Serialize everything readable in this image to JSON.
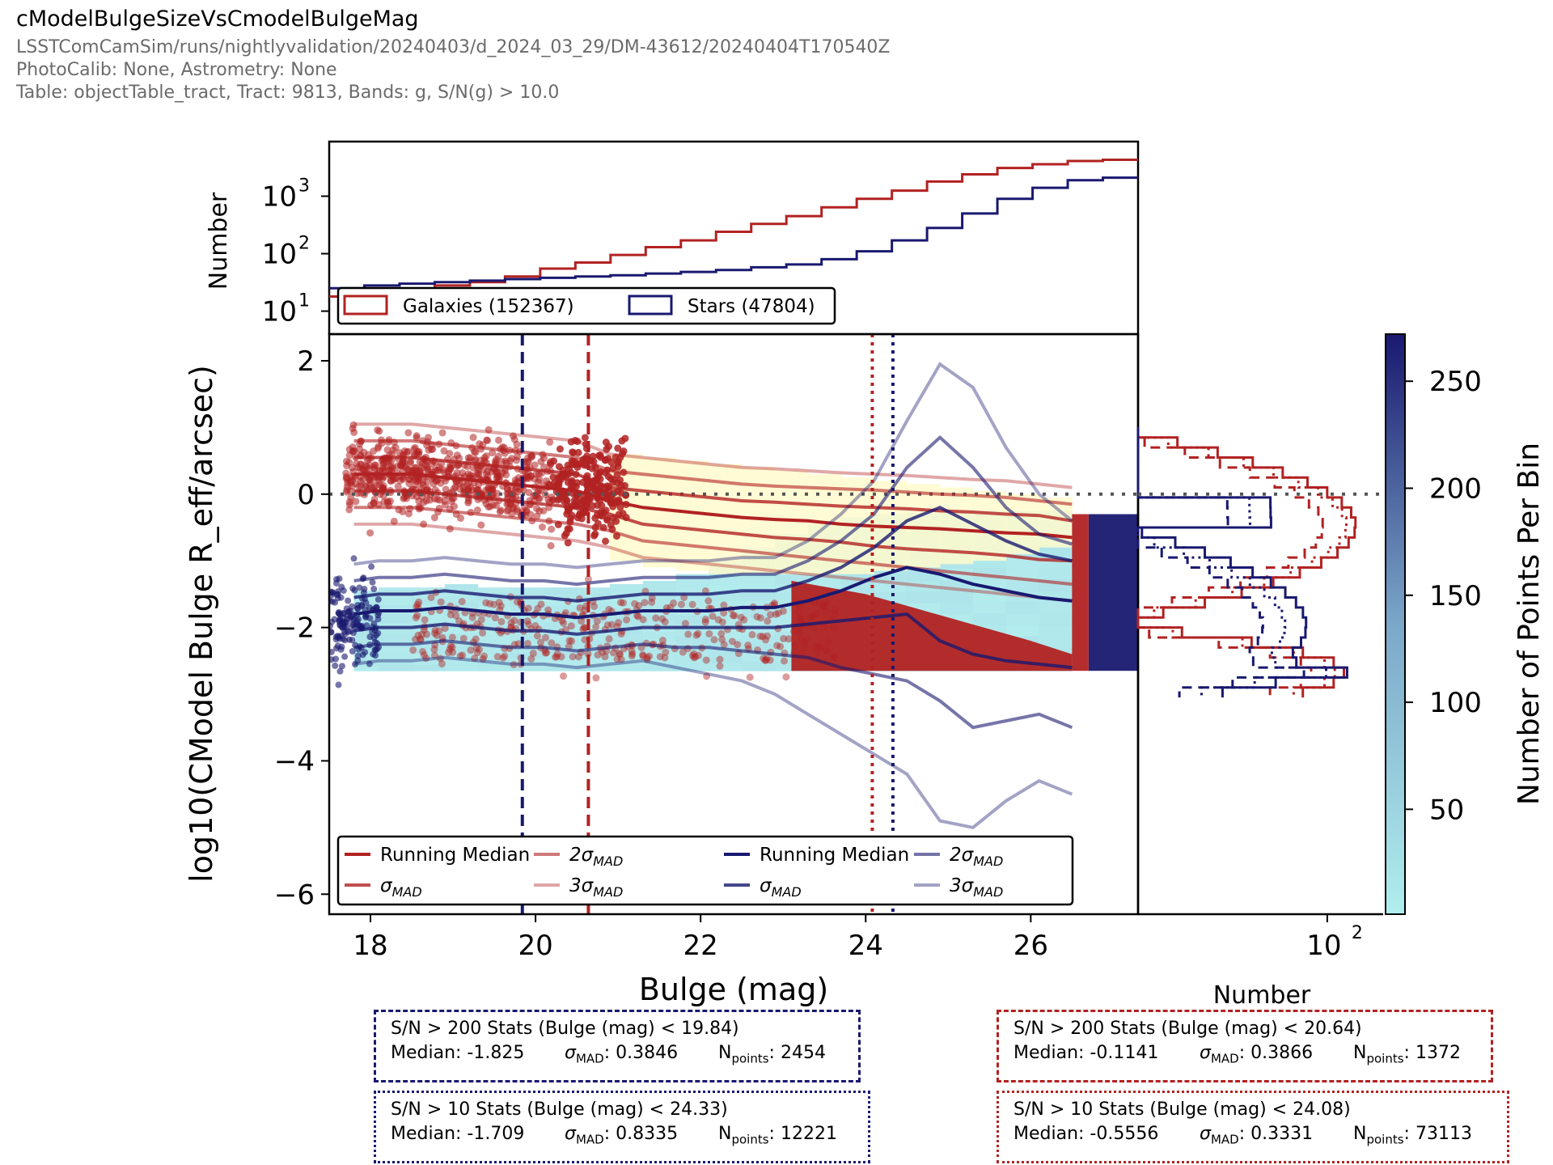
{
  "header": {
    "title": "cModelBulgeSizeVsCmodelBulgeMag",
    "lines": [
      "LSSTComCamSim/runs/nightlyvalidation/20240403/d_2024_03_29/DM-43612/20240404T170540Z",
      "PhotoCalib: None, Astrometry: None",
      "Table: objectTable_tract, Tract: 9813, Bands: g, S/N(g) > 10.0"
    ]
  },
  "colors": {
    "galaxy": "#b22222",
    "star": "#191970",
    "density_low": "#b0eeee",
    "density_mid": "#7ba7c9",
    "density_high": "#191970",
    "galaxy_density_low": "#fffacd"
  },
  "chart_data": {
    "type": "scatter",
    "xlabel": "Bulge (mag)",
    "ylabel": "log10(CModel Bulge R_eff/arcsec)",
    "xlim": [
      17.5,
      27.3
    ],
    "ylim": [
      -6.3,
      2.4
    ],
    "xticks": [
      "18",
      "20",
      "22",
      "24",
      "26"
    ],
    "yticks": [
      "2",
      "0",
      "−2",
      "−4",
      "−6"
    ],
    "reference_line_y": 0,
    "x": [
      17.8,
      18.1,
      18.5,
      18.9,
      19.3,
      19.7,
      20.1,
      20.5,
      20.9,
      21.3,
      21.7,
      22.1,
      22.5,
      22.9,
      23.3,
      23.7,
      24.1,
      24.5,
      24.9,
      25.3,
      25.7,
      26.1,
      26.5
    ],
    "galaxies": {
      "name": "Galaxies (152367)",
      "count": 152367,
      "running_median": [
        0.3,
        0.3,
        0.3,
        0.25,
        0.2,
        0.15,
        0.1,
        0.05,
        -0.1,
        -0.2,
        -0.25,
        -0.3,
        -0.35,
        -0.38,
        -0.4,
        -0.45,
        -0.48,
        -0.5,
        -0.52,
        -0.55,
        -0.58,
        -0.6,
        -0.65
      ],
      "sigma_mad_upper": [
        0.55,
        0.55,
        0.55,
        0.5,
        0.45,
        0.4,
        0.35,
        0.3,
        0.1,
        0.05,
        0.0,
        -0.05,
        -0.1,
        -0.12,
        -0.15,
        -0.18,
        -0.2,
        -0.22,
        -0.25,
        -0.27,
        -0.3,
        -0.32,
        -0.4
      ],
      "sigma_mad_lower": [
        0.05,
        0.05,
        0.05,
        0.0,
        -0.05,
        -0.1,
        -0.15,
        -0.2,
        -0.3,
        -0.45,
        -0.5,
        -0.55,
        -0.6,
        -0.65,
        -0.68,
        -0.72,
        -0.78,
        -0.82,
        -0.85,
        -0.88,
        -0.92,
        -0.98,
        -1.0
      ],
      "two_sigma_upper": [
        0.8,
        0.8,
        0.8,
        0.75,
        0.7,
        0.65,
        0.6,
        0.55,
        0.35,
        0.3,
        0.25,
        0.2,
        0.15,
        0.12,
        0.1,
        0.08,
        0.06,
        0.03,
        0.0,
        -0.02,
        -0.05,
        -0.1,
        -0.15
      ],
      "two_sigma_lower": [
        -0.2,
        -0.2,
        -0.2,
        -0.25,
        -0.3,
        -0.35,
        -0.4,
        -0.45,
        -0.55,
        -0.7,
        -0.75,
        -0.8,
        -0.85,
        -0.9,
        -0.95,
        -1.0,
        -1.05,
        -1.1,
        -1.15,
        -1.2,
        -1.25,
        -1.3,
        -1.35
      ],
      "three_sigma_upper": [
        1.05,
        1.05,
        1.05,
        1.0,
        0.95,
        0.9,
        0.85,
        0.8,
        0.6,
        0.55,
        0.5,
        0.45,
        0.4,
        0.38,
        0.35,
        0.32,
        0.3,
        0.28,
        0.25,
        0.22,
        0.2,
        0.15,
        0.1
      ],
      "three_sigma_lower": [
        -0.45,
        -0.45,
        -0.45,
        -0.5,
        -0.55,
        -0.6,
        -0.65,
        -0.7,
        -0.8,
        -0.95,
        -1.0,
        -1.05,
        -1.1,
        -1.15,
        -1.2,
        -1.25,
        -1.3,
        -1.35,
        -1.4,
        -1.45,
        -1.5,
        -1.55,
        -1.6
      ],
      "hist_counts": [
        18,
        20,
        22,
        28,
        32,
        40,
        55,
        70,
        95,
        130,
        170,
        240,
        330,
        450,
        640,
        900,
        1250,
        1800,
        2400,
        3100,
        3600,
        4100,
        4300
      ]
    },
    "stars": {
      "name": "Stars (47804)",
      "count": 47804,
      "running_median": [
        -1.8,
        -1.75,
        -1.75,
        -1.7,
        -1.75,
        -1.8,
        -1.8,
        -1.85,
        -1.8,
        -1.75,
        -1.75,
        -1.75,
        -1.7,
        -1.7,
        -1.6,
        -1.45,
        -1.25,
        -1.1,
        -1.2,
        -1.35,
        -1.45,
        -1.55,
        -1.6
      ],
      "sigma_mad_upper": [
        -1.55,
        -1.5,
        -1.5,
        -1.45,
        -1.5,
        -1.55,
        -1.55,
        -1.6,
        -1.55,
        -1.5,
        -1.5,
        -1.5,
        -1.45,
        -1.45,
        -1.3,
        -1.1,
        -0.8,
        -0.4,
        -0.2,
        -0.45,
        -0.7,
        -0.9,
        -1.0
      ],
      "sigma_mad_lower": [
        -2.05,
        -2.0,
        -2.0,
        -1.95,
        -2.0,
        -2.05,
        -2.05,
        -2.1,
        -2.05,
        -2.0,
        -2.0,
        -2.0,
        -2.0,
        -2.0,
        -1.95,
        -1.9,
        -1.85,
        -1.8,
        -2.2,
        -2.4,
        -2.5,
        -2.55,
        -2.6
      ],
      "two_sigma_upper": [
        -1.3,
        -1.25,
        -1.25,
        -1.2,
        -1.25,
        -1.3,
        -1.3,
        -1.35,
        -1.3,
        -1.25,
        -1.25,
        -1.25,
        -1.2,
        -1.2,
        -1.0,
        -0.7,
        -0.3,
        0.4,
        0.85,
        0.4,
        -0.2,
        -0.6,
        -0.75
      ],
      "two_sigma_lower": [
        -2.3,
        -2.25,
        -2.25,
        -2.2,
        -2.25,
        -2.3,
        -2.3,
        -2.35,
        -2.3,
        -2.25,
        -2.3,
        -2.3,
        -2.35,
        -2.4,
        -2.45,
        -2.6,
        -2.7,
        -2.8,
        -3.1,
        -3.5,
        -3.4,
        -3.3,
        -3.5
      ],
      "three_sigma_upper": [
        -1.05,
        -1.0,
        -1.0,
        -0.95,
        -1.0,
        -1.05,
        -1.05,
        -1.1,
        -1.05,
        -1.0,
        -1.0,
        -1.0,
        -0.95,
        -0.95,
        -0.7,
        -0.3,
        0.2,
        1.1,
        1.95,
        1.6,
        0.7,
        0.0,
        -0.4
      ],
      "three_sigma_lower": [
        -2.55,
        -2.5,
        -2.5,
        -2.45,
        -2.5,
        -2.55,
        -2.55,
        -2.6,
        -2.55,
        -2.5,
        -2.6,
        -2.7,
        -2.8,
        -3.0,
        -3.3,
        -3.6,
        -3.9,
        -4.2,
        -4.9,
        -5.0,
        -4.6,
        -4.3,
        -4.5
      ],
      "hist_counts": [
        25,
        28,
        30,
        32,
        34,
        36,
        38,
        40,
        42,
        45,
        48,
        52,
        58,
        65,
        80,
        110,
        170,
        280,
        500,
        900,
        1400,
        1900,
        2100
      ]
    },
    "vertical_lines": [
      {
        "x": 19.84,
        "series": "stars",
        "style": "dashed"
      },
      {
        "x": 20.64,
        "series": "galaxies",
        "style": "dashed"
      },
      {
        "x": 24.08,
        "series": "galaxies",
        "style": "dotted"
      },
      {
        "x": 24.33,
        "series": "stars",
        "style": "dotted"
      }
    ],
    "top_hist": {
      "ylabel": "Number",
      "yscale": "log",
      "yticks": [
        "10",
        "10",
        "10"
      ],
      "ytick_exponents": [
        "3",
        "2",
        "1"
      ],
      "ytick_values": [
        1000,
        100,
        10
      ]
    },
    "side_hist": {
      "xlabel": "Number",
      "xscale": "log",
      "xtick": "10",
      "xtick_exponent": "2",
      "xtick_value": 100
    },
    "legend_top": [
      "Galaxies (152367)",
      "Stars (47804)"
    ],
    "legend_bottom": [
      {
        "label": "Running Median",
        "series": "galaxies",
        "level": 0
      },
      {
        "label": "σ",
        "sub": "MAD",
        "series": "galaxies",
        "level": 1
      },
      {
        "label": "2σ",
        "sub": "MAD",
        "series": "galaxies",
        "level": 2
      },
      {
        "label": "3σ",
        "sub": "MAD",
        "series": "galaxies",
        "level": 3
      },
      {
        "label": "Running Median",
        "series": "stars",
        "level": 0
      },
      {
        "label": "σ",
        "sub": "MAD",
        "series": "stars",
        "level": 1
      },
      {
        "label": "2σ",
        "sub": "MAD",
        "series": "stars",
        "level": 2
      },
      {
        "label": "3σ",
        "sub": "MAD",
        "series": "stars",
        "level": 3
      }
    ],
    "colorbar": {
      "label": "Number of Points Per Bin",
      "ticks": [
        50,
        100,
        150,
        200,
        250
      ],
      "range": [
        1,
        272
      ]
    }
  },
  "stats": {
    "stars_hi": {
      "title": "S/N > 200 Stats (Bulge (mag) < 19.84)",
      "median_label": "Median: -1.825",
      "sigma_value": ": 0.3846",
      "n_value": ": 2454"
    },
    "stars_lo": {
      "title": "S/N > 10 Stats (Bulge (mag) < 24.33)",
      "median_label": "Median: -1.709",
      "sigma_value": ": 0.8335",
      "n_value": ": 12221"
    },
    "gal_hi": {
      "title": "S/N > 200 Stats (Bulge (mag) < 20.64)",
      "median_label": "Median: -0.1141",
      "sigma_value": ": 0.3866",
      "n_value": ": 1372"
    },
    "gal_lo": {
      "title": "S/N > 10 Stats (Bulge (mag) < 24.08)",
      "median_label": "Median: -0.5556",
      "sigma_value": ": 0.3331",
      "n_value": ": 73113"
    },
    "sigma_symbol": "σ",
    "sigma_sub": "MAD",
    "n_symbol": "N",
    "n_sub": "points"
  }
}
